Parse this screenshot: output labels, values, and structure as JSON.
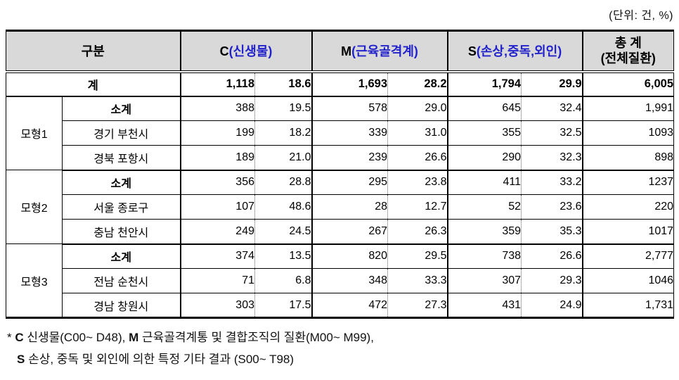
{
  "unit_label": "(단위: 건, %)",
  "colors": {
    "accent_blue": "#2222cc",
    "header_bg": "#d9d9d9",
    "border": "#000000"
  },
  "table": {
    "header": {
      "gubun": "구분",
      "sections": [
        {
          "code": "C",
          "name": "(신생물)"
        },
        {
          "code": "M",
          "name": "(근육골격계)"
        },
        {
          "code": "S",
          "name": "(손상,중독,외인)"
        }
      ],
      "total_line1": "총 계",
      "total_line2": "(전체질환)"
    },
    "total_row": {
      "label": "계",
      "values": [
        "1,118",
        "18.6",
        "1,693",
        "28.2",
        "1,794",
        "29.9",
        "6,005"
      ]
    },
    "groups": [
      {
        "label": "모형1",
        "rows": [
          {
            "label": "소계",
            "bold": true,
            "values": [
              "388",
              "19.5",
              "578",
              "29.0",
              "645",
              "32.4",
              "1,991"
            ]
          },
          {
            "label": "경기 부천시",
            "bold": false,
            "values": [
              "199",
              "18.2",
              "339",
              "31.0",
              "355",
              "32.5",
              "1093"
            ]
          },
          {
            "label": "경북 포항시",
            "bold": false,
            "values": [
              "189",
              "21.0",
              "239",
              "26.6",
              "290",
              "32.3",
              "898"
            ]
          }
        ]
      },
      {
        "label": "모형2",
        "rows": [
          {
            "label": "소계",
            "bold": true,
            "values": [
              "356",
              "28.8",
              "295",
              "23.8",
              "411",
              "33.2",
              "1237"
            ]
          },
          {
            "label": "서울 종로구",
            "bold": false,
            "values": [
              "107",
              "48.6",
              "28",
              "12.7",
              "52",
              "23.6",
              "220"
            ]
          },
          {
            "label": "충남 천안시",
            "bold": false,
            "values": [
              "249",
              "24.5",
              "267",
              "26.3",
              "359",
              "35.3",
              "1017"
            ]
          }
        ]
      },
      {
        "label": "모형3",
        "rows": [
          {
            "label": "소계",
            "bold": true,
            "values": [
              "374",
              "13.5",
              "820",
              "29.5",
              "738",
              "26.6",
              "2,777"
            ]
          },
          {
            "label": "전남 순천시",
            "bold": false,
            "values": [
              "71",
              "6.8",
              "348",
              "33.3",
              "307",
              "29.3",
              "1046"
            ]
          },
          {
            "label": "경남 창원시",
            "bold": false,
            "values": [
              "303",
              "17.5",
              "472",
              "27.3",
              "431",
              "24.9",
              "1,731"
            ]
          }
        ]
      }
    ]
  },
  "footnote": {
    "lines": [
      [
        {
          "text": "* ",
          "bold": false
        },
        {
          "text": "C",
          "bold": true
        },
        {
          "text": " 신생물(C00~ D48), ",
          "bold": false
        },
        {
          "text": "M",
          "bold": true
        },
        {
          "text": " 근육골격계통 및 결합조직의 질환(M00~ M99),",
          "bold": false
        }
      ],
      [
        {
          "text": "S",
          "bold": true
        },
        {
          "text": " 손상, 중독 및 외인에 의한 특정 기타 결과 (S00~ T98)",
          "bold": false
        }
      ]
    ]
  }
}
